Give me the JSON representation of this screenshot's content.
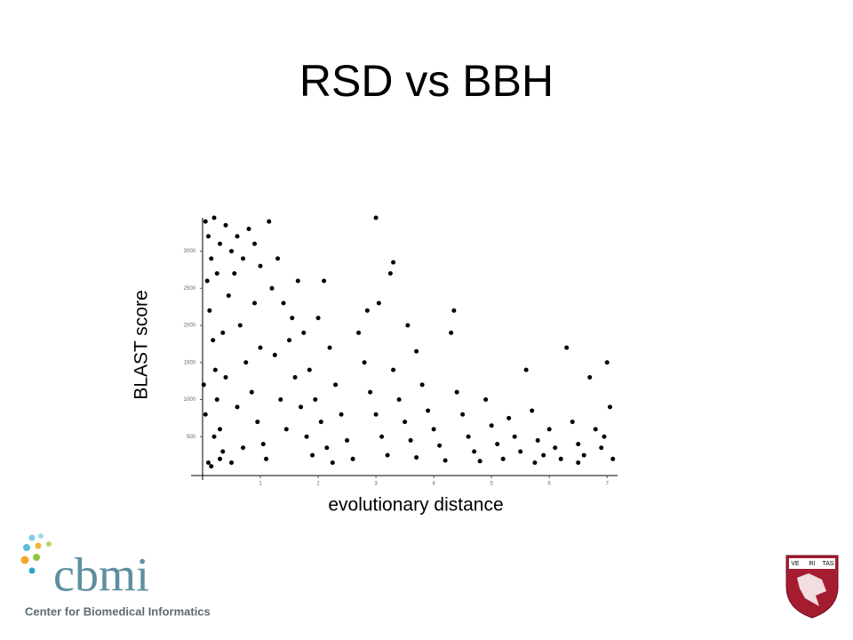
{
  "chart_data": {
    "type": "scatter",
    "title": "RSD vs BBH",
    "x_label": "evolutionary distance",
    "y_label": "BLAST score",
    "color": "#000000",
    "xlim": [
      0,
      7.15
    ],
    "ylim": [
      0,
      3450
    ],
    "xticks": [
      1,
      2,
      3,
      4,
      5,
      6,
      7
    ],
    "yticks": [
      500,
      1000,
      1500,
      2000,
      2500,
      3000
    ],
    "x": [
      0.05,
      0.1,
      0.15,
      0.2,
      0.3,
      0.4,
      0.5,
      0.08,
      0.12,
      0.18,
      0.22,
      0.25,
      0.3,
      0.35,
      0.1,
      0.45,
      0.55,
      0.6,
      0.7,
      0.8,
      0.9,
      1.0,
      0.65,
      0.75,
      0.85,
      0.95,
      1.05,
      1.1,
      1.2,
      1.3,
      1.4,
      1.5,
      1.6,
      1.7,
      1.8,
      1.9,
      2.0,
      2.1,
      2.2,
      2.3,
      2.4,
      2.5,
      2.6,
      1.15,
      1.25,
      1.35,
      1.45,
      1.55,
      1.65,
      1.75,
      1.85,
      1.95,
      2.05,
      2.15,
      2.25,
      2.7,
      2.8,
      2.9,
      3.0,
      3.1,
      3.2,
      3.3,
      3.4,
      3.5,
      3.6,
      3.7,
      3.8,
      3.9,
      4.0,
      4.1,
      4.2,
      3.05,
      3.3,
      3.0,
      3.25,
      2.85,
      3.55,
      3.7,
      4.3,
      4.35,
      4.4,
      4.5,
      4.6,
      4.7,
      4.8,
      4.9,
      5.0,
      5.1,
      5.2,
      5.3,
      5.4,
      5.5,
      5.6,
      5.7,
      5.8,
      5.9,
      6.0,
      6.1,
      6.2,
      6.3,
      6.4,
      6.5,
      6.6,
      6.7,
      6.8,
      6.9,
      7.0,
      7.1,
      7.05,
      6.95,
      6.5,
      5.75,
      0.2,
      0.15,
      0.3,
      0.5,
      0.6,
      0.4,
      0.7,
      1.0,
      0.9,
      0.25,
      0.35,
      0.02,
      0.05
    ],
    "y": [
      3400,
      3200,
      2900,
      3450,
      3100,
      3350,
      3000,
      2600,
      2200,
      1800,
      1400,
      1000,
      600,
      300,
      150,
      2400,
      2700,
      3200,
      2900,
      3300,
      3100,
      2800,
      2000,
      1500,
      1100,
      700,
      400,
      200,
      2500,
      2900,
      2300,
      1800,
      1300,
      900,
      500,
      250,
      2100,
      2600,
      1700,
      1200,
      800,
      450,
      200,
      3400,
      1600,
      1000,
      600,
      2100,
      2600,
      1900,
      1400,
      1000,
      700,
      350,
      150,
      1900,
      1500,
      1100,
      800,
      500,
      250,
      1400,
      1000,
      700,
      450,
      220,
      1200,
      850,
      600,
      380,
      180,
      2300,
      2850,
      3450,
      2700,
      2200,
      2000,
      1650,
      1900,
      2200,
      1100,
      800,
      500,
      300,
      170,
      1000,
      650,
      400,
      200,
      750,
      500,
      300,
      1400,
      850,
      450,
      250,
      600,
      350,
      200,
      1700,
      700,
      400,
      250,
      1300,
      600,
      350,
      1500,
      200,
      900,
      500,
      150,
      150,
      500,
      100,
      200,
      150,
      900,
      1300,
      350,
      1700,
      2300,
      2700,
      1900,
      1200,
      800
    ]
  },
  "logo": {
    "name": "cbmi",
    "subtitle": "Center for Biomedical Informatics"
  },
  "shield": {
    "words": [
      "VE",
      "RI",
      "TAS"
    ]
  }
}
